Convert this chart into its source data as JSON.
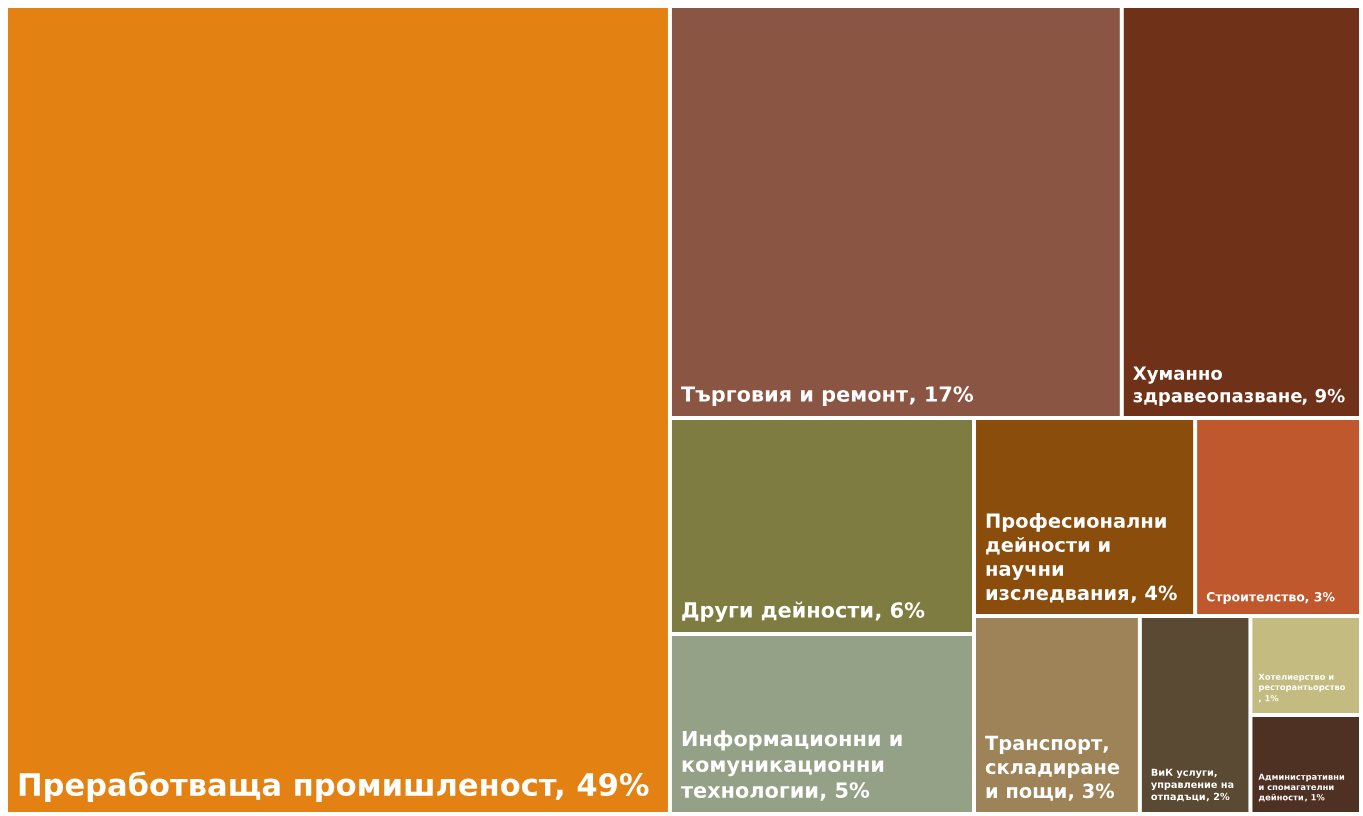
{
  "chart_data": {
    "type": "other",
    "categories": [
      "Преработваща промишленост",
      "Търговия и ремонт",
      "Хуманно здравеопазване",
      "Други дейности",
      "Информационни и комуникационни технологии",
      "Професионални дейности и научни изследвания",
      "Строителство",
      "Транспорт, складиране и пощи",
      "ВиК услуги, управление на отпадъци",
      "Хотелиерство и ресторантьорство",
      "Административни и спомагателни дейности"
    ],
    "values": [
      49,
      17,
      9,
      6,
      5,
      4,
      3,
      3,
      2,
      1,
      1
    ],
    "value_labels": [
      ", 49%",
      ", 17%",
      ", 9%",
      ", 6%",
      ", 5%",
      ", 4%",
      ", 3%",
      ", 3%",
      ", 2%",
      ", 1%",
      ", 1%"
    ],
    "colors": [
      "#e38213",
      "#8a5542",
      "#6f3219",
      "#7f7c41",
      "#95a187",
      "#8b4d0b",
      "#bf582c",
      "#9d8357",
      "#5a4a33",
      "#c3bb7f",
      "#4f3124"
    ]
  }
}
